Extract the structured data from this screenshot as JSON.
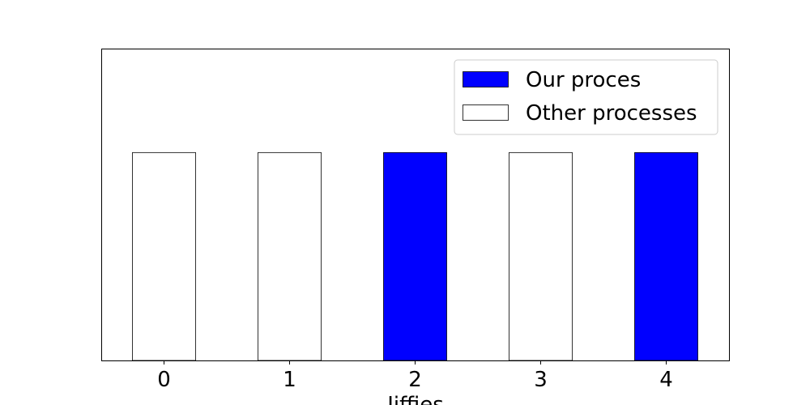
{
  "chart_data": {
    "type": "bar",
    "categories": [
      "0",
      "1",
      "2",
      "3",
      "4"
    ],
    "x": [
      0,
      1,
      2,
      3,
      4
    ],
    "series": [
      {
        "name": "Our proces",
        "color": "#0000ff",
        "values": [
          0,
          0,
          1,
          0,
          1
        ]
      },
      {
        "name": "Other processes",
        "color": "#ffffff",
        "values": [
          1,
          1,
          0,
          1,
          0
        ]
      }
    ],
    "xlabel": "Jiffies",
    "ylabel": "",
    "title": "",
    "xlim": [
      -0.5,
      4.5
    ],
    "ylim": [
      0,
      1.5
    ],
    "y_axis_visible": false,
    "grid": false,
    "legend_position": "top-right",
    "edge_color": "#000000"
  }
}
